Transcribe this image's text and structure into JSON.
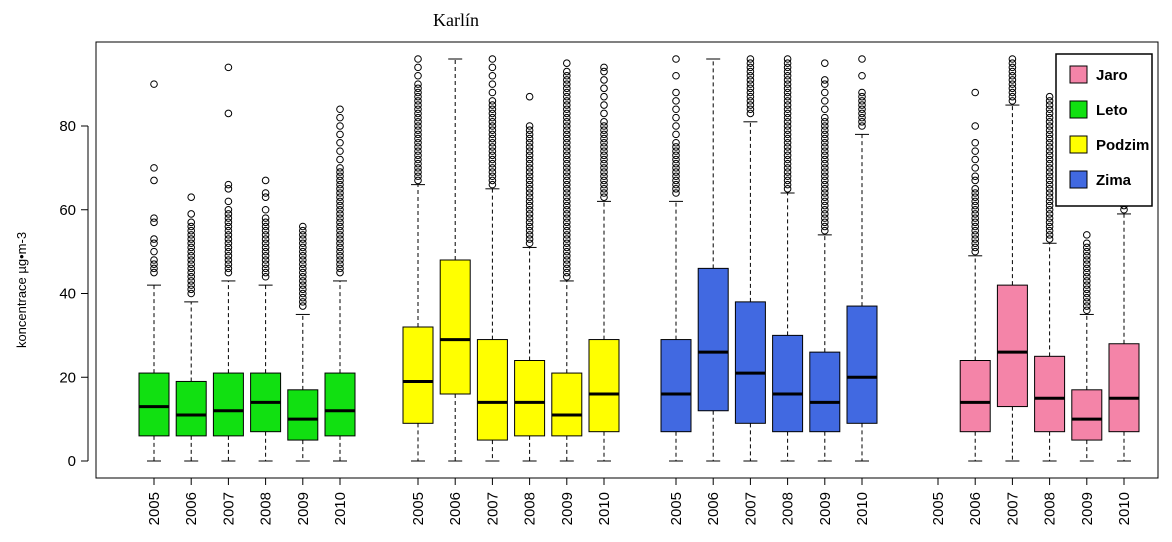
{
  "chart_data": {
    "type": "box",
    "title": "Karlín",
    "ylabel": "koncentrace µg•m-3",
    "xlabel": "",
    "ylim": [
      0,
      95
    ],
    "yticks": [
      0,
      20,
      40,
      60,
      80
    ],
    "grid": false,
    "legend_position": "top-right",
    "legend": [
      {
        "label": "Jaro",
        "color": "#F484A8"
      },
      {
        "label": "Leto",
        "color": "#11E011"
      },
      {
        "label": "Podzim",
        "color": "#FFFF00"
      },
      {
        "label": "Zima",
        "color": "#4169E1"
      }
    ],
    "groups": [
      {
        "season": "Leto",
        "color": "#11E011",
        "boxes": [
          {
            "year": "2005",
            "min": 0,
            "q1": 6,
            "median": 13,
            "q3": 21,
            "max": 42,
            "outliers": [
              45,
              46,
              47,
              48,
              50,
              52,
              53,
              57,
              58,
              67,
              70,
              90
            ]
          },
          {
            "year": "2006",
            "min": 0,
            "q1": 6,
            "median": 11,
            "q3": 19,
            "max": 38,
            "outliers": [
              40,
              41,
              42,
              43,
              44,
              45,
              46,
              47,
              48,
              49,
              50,
              51,
              52,
              53,
              54,
              55,
              56,
              57,
              59,
              63
            ]
          },
          {
            "year": "2007",
            "min": 0,
            "q1": 6,
            "median": 12,
            "q3": 21,
            "max": 43,
            "outliers": [
              45,
              46,
              47,
              48,
              49,
              50,
              51,
              52,
              53,
              54,
              55,
              56,
              57,
              58,
              59,
              60,
              62,
              65,
              66,
              83,
              94
            ]
          },
          {
            "year": "2008",
            "min": 0,
            "q1": 7,
            "median": 14,
            "q3": 21,
            "max": 42,
            "outliers": [
              44,
              45,
              46,
              47,
              48,
              49,
              50,
              51,
              52,
              53,
              54,
              55,
              56,
              57,
              58,
              60,
              63,
              64,
              67
            ]
          },
          {
            "year": "2009",
            "min": 0,
            "q1": 5,
            "median": 10,
            "q3": 17,
            "max": 35,
            "outliers": [
              37,
              38,
              39,
              40,
              41,
              42,
              43,
              44,
              45,
              46,
              47,
              48,
              49,
              50,
              51,
              52,
              53,
              54,
              55,
              56
            ]
          },
          {
            "year": "2010",
            "min": 0,
            "q1": 6,
            "median": 12,
            "q3": 21,
            "max": 43,
            "outliers": [
              45,
              46,
              47,
              48,
              49,
              50,
              51,
              52,
              53,
              54,
              55,
              56,
              57,
              58,
              59,
              60,
              61,
              62,
              63,
              64,
              65,
              66,
              67,
              68,
              69,
              70,
              72,
              74,
              76,
              78,
              80,
              82,
              84
            ]
          }
        ]
      },
      {
        "season": "Podzim",
        "color": "#FFFF00",
        "boxes": [
          {
            "year": "2005",
            "min": 0,
            "q1": 9,
            "median": 19,
            "q3": 32,
            "max": 66,
            "outliers": [
              67,
              68,
              69,
              70,
              71,
              72,
              73,
              74,
              75,
              76,
              77,
              78,
              79,
              80,
              81,
              82,
              83,
              84,
              85,
              86,
              87,
              88,
              89,
              90,
              92,
              94,
              96
            ]
          },
          {
            "year": "2006",
            "min": 0,
            "q1": 16,
            "median": 29,
            "q3": 48,
            "max": 96,
            "outliers": []
          },
          {
            "year": "2007",
            "min": 0,
            "q1": 5,
            "median": 14,
            "q3": 29,
            "max": 65,
            "outliers": [
              66,
              67,
              68,
              69,
              70,
              71,
              72,
              73,
              74,
              75,
              76,
              77,
              78,
              79,
              80,
              81,
              82,
              83,
              84,
              85,
              86,
              88,
              90,
              92,
              94,
              96
            ]
          },
          {
            "year": "2008",
            "min": 0,
            "q1": 6,
            "median": 14,
            "q3": 24,
            "max": 51,
            "outliers": [
              52,
              53,
              54,
              55,
              56,
              57,
              58,
              59,
              60,
              61,
              62,
              63,
              64,
              65,
              66,
              67,
              68,
              69,
              70,
              71,
              72,
              73,
              74,
              75,
              76,
              77,
              78,
              79,
              80,
              87
            ]
          },
          {
            "year": "2009",
            "min": 0,
            "q1": 6,
            "median": 11,
            "q3": 21,
            "max": 43,
            "outliers": [
              44,
              45,
              46,
              47,
              48,
              49,
              50,
              51,
              52,
              53,
              54,
              55,
              56,
              57,
              58,
              59,
              60,
              61,
              62,
              63,
              64,
              65,
              66,
              67,
              68,
              69,
              70,
              71,
              72,
              73,
              74,
              75,
              76,
              77,
              78,
              79,
              80,
              81,
              82,
              83,
              84,
              85,
              86,
              87,
              88,
              89,
              90,
              91,
              92,
              93,
              95
            ]
          },
          {
            "year": "2010",
            "min": 0,
            "q1": 7,
            "median": 16,
            "q3": 29,
            "max": 62,
            "outliers": [
              63,
              64,
              65,
              66,
              67,
              68,
              69,
              70,
              71,
              72,
              73,
              74,
              75,
              76,
              77,
              78,
              79,
              80,
              81,
              83,
              85,
              87,
              89,
              91,
              93,
              94
            ]
          }
        ]
      },
      {
        "season": "Zima",
        "color": "#4169E1",
        "boxes": [
          {
            "year": "2005",
            "min": 0,
            "q1": 7,
            "median": 16,
            "q3": 29,
            "max": 62,
            "outliers": [
              64,
              65,
              66,
              67,
              68,
              69,
              70,
              71,
              72,
              73,
              74,
              75,
              76,
              78,
              80,
              82,
              84,
              86,
              88,
              92,
              96
            ]
          },
          {
            "year": "2006",
            "min": 0,
            "q1": 12,
            "median": 26,
            "q3": 46,
            "max": 96,
            "outliers": []
          },
          {
            "year": "2007",
            "min": 0,
            "q1": 9,
            "median": 21,
            "q3": 38,
            "max": 81,
            "outliers": [
              83,
              84,
              85,
              86,
              87,
              88,
              89,
              90,
              91,
              92,
              93,
              94,
              95,
              96
            ]
          },
          {
            "year": "2008",
            "min": 0,
            "q1": 7,
            "median": 16,
            "q3": 30,
            "max": 64,
            "outliers": [
              65,
              66,
              67,
              68,
              69,
              70,
              71,
              72,
              73,
              74,
              75,
              76,
              77,
              78,
              79,
              80,
              81,
              82,
              83,
              84,
              85,
              86,
              87,
              88,
              89,
              90,
              91,
              92,
              93,
              94,
              95,
              96
            ]
          },
          {
            "year": "2009",
            "min": 0,
            "q1": 7,
            "median": 14,
            "q3": 26,
            "max": 54,
            "outliers": [
              55,
              56,
              57,
              58,
              59,
              60,
              61,
              62,
              63,
              64,
              65,
              66,
              67,
              68,
              69,
              70,
              71,
              72,
              73,
              74,
              75,
              76,
              77,
              78,
              79,
              80,
              81,
              82,
              84,
              86,
              88,
              90,
              91,
              95
            ]
          },
          {
            "year": "2010",
            "min": 0,
            "q1": 9,
            "median": 20,
            "q3": 37,
            "max": 78,
            "outliers": [
              80,
              81,
              82,
              83,
              84,
              85,
              86,
              87,
              88,
              92,
              96
            ]
          }
        ]
      },
      {
        "season": "Jaro",
        "color": "#F484A8",
        "boxes": [
          {
            "year": "2005",
            "min": null,
            "q1": null,
            "median": null,
            "q3": null,
            "max": null,
            "outliers": []
          },
          {
            "year": "2006",
            "min": 0,
            "q1": 7,
            "median": 14,
            "q3": 24,
            "max": 49,
            "outliers": [
              50,
              51,
              52,
              53,
              54,
              55,
              56,
              57,
              58,
              59,
              60,
              61,
              62,
              63,
              64,
              65,
              67,
              68,
              70,
              72,
              74,
              76,
              80,
              88
            ]
          },
          {
            "year": "2007",
            "min": 0,
            "q1": 13,
            "median": 26,
            "q3": 42,
            "max": 85,
            "outliers": [
              86,
              87,
              88,
              89,
              90,
              91,
              92,
              93,
              94,
              95,
              96
            ]
          },
          {
            "year": "2008",
            "min": 0,
            "q1": 7,
            "median": 15,
            "q3": 25,
            "max": 52,
            "outliers": [
              53,
              54,
              55,
              56,
              57,
              58,
              59,
              60,
              61,
              62,
              63,
              64,
              65,
              66,
              67,
              68,
              69,
              70,
              71,
              72,
              73,
              74,
              75,
              76,
              77,
              78,
              79,
              80,
              81,
              82,
              83,
              84,
              85,
              86,
              87
            ]
          },
          {
            "year": "2009",
            "min": 0,
            "q1": 5,
            "median": 10,
            "q3": 17,
            "max": 35,
            "outliers": [
              36,
              37,
              38,
              39,
              40,
              41,
              42,
              43,
              44,
              45,
              46,
              47,
              48,
              49,
              50,
              51,
              52,
              54
            ]
          },
          {
            "year": "2010",
            "min": 0,
            "q1": 7,
            "median": 15,
            "q3": 28,
            "max": 59,
            "outliers": [
              60,
              61,
              62,
              63,
              64,
              66,
              68,
              70,
              72,
              74,
              76,
              78,
              80,
              82,
              84,
              86,
              88,
              90,
              92,
              94,
              96
            ]
          }
        ]
      }
    ]
  }
}
